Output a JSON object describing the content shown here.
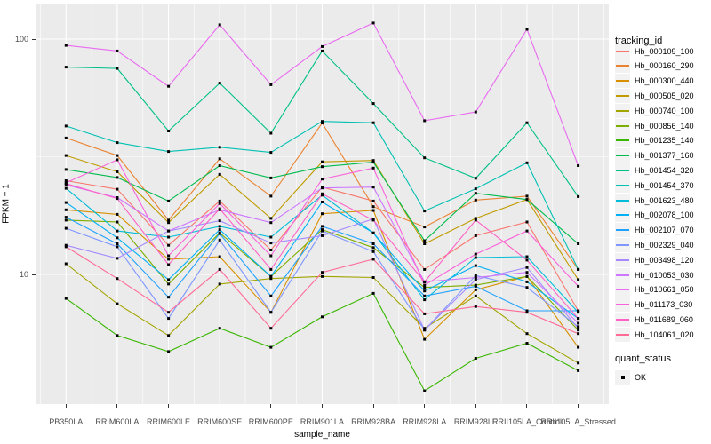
{
  "chart_data": {
    "type": "line",
    "title": "",
    "xlabel": "sample_name",
    "ylabel": "FPKM + 1",
    "y_scale": "log10",
    "ylim_log": [
      0.45,
      2.12
    ],
    "y_major_ticks": [
      100,
      10
    ],
    "grid": "on",
    "legend_position": "right",
    "panel_background": "#EBEBEB",
    "gridline_color": "#FFFFFF",
    "point_marker": "black-square",
    "categories": [
      "PB350LA",
      "RRIM600LA",
      "RRIM600LE",
      "RRIM600SE",
      "RRIM600PE",
      "RRIM901LA",
      "RRIM928BA",
      "RRIM928LA",
      "RRIM928LE",
      "RRII105LA_Control",
      "RRII105LA_Stressed"
    ],
    "series": [
      {
        "name": "Hb_000109_100",
        "color": "#F8766D",
        "values": [
          25,
          23,
          13.3,
          20.5,
          12.7,
          23.5,
          20.5,
          10.5,
          14.6,
          16.7,
          7.0
        ]
      },
      {
        "name": "Hb_000160_290",
        "color": "#EA8331",
        "values": [
          38,
          32,
          17,
          31,
          21.5,
          44,
          19.4,
          15.9,
          20.7,
          21.5,
          10.5
        ]
      },
      {
        "name": "Hb_000300_440",
        "color": "#D89000",
        "values": [
          18.8,
          18,
          11.6,
          11.9,
          6.9,
          18.1,
          18.7,
          5.3,
          8.6,
          9.8,
          4.9
        ]
      },
      {
        "name": "Hb_000505_020",
        "color": "#C09B00",
        "values": [
          32,
          27.3,
          16.6,
          26.6,
          17.3,
          30.1,
          30.5,
          13.5,
          17.3,
          20.8,
          9.5
        ]
      },
      {
        "name": "Hb_000740_100",
        "color": "#A3A500",
        "values": [
          11.1,
          7.5,
          5.5,
          9.1,
          9.6,
          9.8,
          9.7,
          5.9,
          8.1,
          5.6,
          4.2
        ]
      },
      {
        "name": "Hb_000856_140",
        "color": "#7CAE00",
        "values": [
          17,
          16.7,
          9.1,
          15,
          9.8,
          15.5,
          13,
          8.8,
          9,
          9.8,
          5.8
        ]
      },
      {
        "name": "Hb_001235_140",
        "color": "#39B600",
        "values": [
          7.9,
          5.5,
          4.7,
          5.9,
          4.9,
          6.6,
          8.3,
          3.2,
          4.4,
          5.1,
          3.9
        ]
      },
      {
        "name": "Hb_001377_160",
        "color": "#00BB4E",
        "values": [
          27.9,
          25.8,
          20.5,
          29,
          25.7,
          28.7,
          30,
          13.9,
          22.1,
          20.8,
          13.5
        ]
      },
      {
        "name": "Hb_001454_320",
        "color": "#00C087",
        "values": [
          76,
          75,
          40.7,
          65,
          39.8,
          89,
          53.2,
          31.3,
          25.6,
          44.1,
          21.4
        ]
      },
      {
        "name": "Hb_001454_370",
        "color": "#00C0B2",
        "values": [
          42.7,
          36.3,
          33.3,
          34.7,
          33,
          44.7,
          44.1,
          18.6,
          23.1,
          29.8,
          10.5
        ]
      },
      {
        "name": "Hb_001623_480",
        "color": "#00BCD8",
        "values": [
          23.2,
          15.3,
          14.4,
          16,
          14.4,
          21.7,
          15,
          7.8,
          11.8,
          11.9,
          6.9
        ]
      },
      {
        "name": "Hb_002078_100",
        "color": "#00B0F6",
        "values": [
          20.2,
          14.3,
          9.5,
          15.5,
          9.8,
          20.3,
          15,
          8.5,
          10.9,
          9.3,
          6.5
        ]
      },
      {
        "name": "Hb_002107_070",
        "color": "#1FA2FF",
        "values": [
          17.5,
          13.5,
          8,
          14.9,
          8.1,
          16,
          13.5,
          8.1,
          8.9,
          7,
          7
        ]
      },
      {
        "name": "Hb_002329_040",
        "color": "#7F96FF",
        "values": [
          15.7,
          13.1,
          6.5,
          14,
          6.9,
          15.3,
          12.5,
          5.8,
          9.9,
          8.8,
          6
        ]
      },
      {
        "name": "Hb_003498_120",
        "color": "#A58AFF",
        "values": [
          13.3,
          11.7,
          15.3,
          16.9,
          13.6,
          14.6,
          17.2,
          5.8,
          9.5,
          10.7,
          5.9
        ]
      },
      {
        "name": "Hb_010053_030",
        "color": "#CE76FF",
        "values": [
          24,
          21.2,
          15.3,
          18.8,
          16.6,
          23.3,
          23.5,
          9.3,
          9.7,
          10.2,
          6.2
        ]
      },
      {
        "name": "Hb_010661_050",
        "color": "#E96BF0",
        "values": [
          94,
          89,
          63,
          115,
          64,
          93,
          117,
          45,
          49,
          110,
          29
        ]
      },
      {
        "name": "Hb_011173_030",
        "color": "#FA62DB",
        "values": [
          24.5,
          30.7,
          12,
          20,
          12,
          25.4,
          28.3,
          9,
          12.2,
          15.3,
          8.9
        ]
      },
      {
        "name": "Hb_011689_060",
        "color": "#FF61C5",
        "values": [
          24.3,
          21,
          11,
          19,
          10.5,
          22,
          17,
          9.3,
          17,
          11.5,
          6.5
        ]
      },
      {
        "name": "Hb_104061_020",
        "color": "#FF6A97",
        "values": [
          13.1,
          9.6,
          6.9,
          10.5,
          5.9,
          10.2,
          11.6,
          6.8,
          7.3,
          6.9,
          5.6
        ]
      }
    ]
  },
  "legend": {
    "tracking_title": "tracking_id",
    "quant_title": "quant_status",
    "quant_ok_label": "OK"
  },
  "axes": {
    "x_title": "sample_name",
    "y_title": "FPKM + 1"
  }
}
